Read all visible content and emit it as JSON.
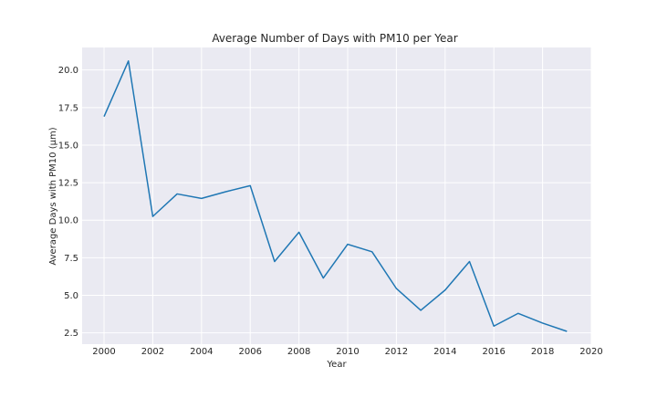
{
  "chart_data": {
    "type": "line",
    "title": "Average Number of Days with PM10 per Year",
    "xlabel": "Year",
    "ylabel": "Average Days with PM10 (μm)",
    "xlim": [
      1999.1,
      2020
    ],
    "ylim": [
      1.75,
      21.5
    ],
    "xticks": [
      2000,
      2002,
      2004,
      2006,
      2008,
      2010,
      2012,
      2014,
      2016,
      2018,
      2020
    ],
    "xtick_labels": [
      "2000",
      "2002",
      "2004",
      "2006",
      "2008",
      "2010",
      "2012",
      "2014",
      "2016",
      "2018",
      "2020"
    ],
    "yticks": [
      2.5,
      5.0,
      7.5,
      10.0,
      12.5,
      15.0,
      17.5,
      20.0
    ],
    "ytick_labels": [
      "2.5",
      "5.0",
      "7.5",
      "10.0",
      "12.5",
      "15.0",
      "17.5",
      "20.0"
    ],
    "grid": true,
    "series": [
      {
        "color": "#1f77b4",
        "x": [
          2000,
          2001,
          2002,
          2003,
          2004,
          2005,
          2006,
          2007,
          2008,
          2009,
          2010,
          2011,
          2012,
          2013,
          2014,
          2015,
          2016,
          2017,
          2018,
          2019
        ],
        "y": [
          16.9,
          20.6,
          10.25,
          11.75,
          11.45,
          11.9,
          12.3,
          7.25,
          9.2,
          6.15,
          8.4,
          7.9,
          5.45,
          4.0,
          5.35,
          7.25,
          2.95,
          3.8,
          3.15,
          2.6
        ]
      }
    ]
  }
}
